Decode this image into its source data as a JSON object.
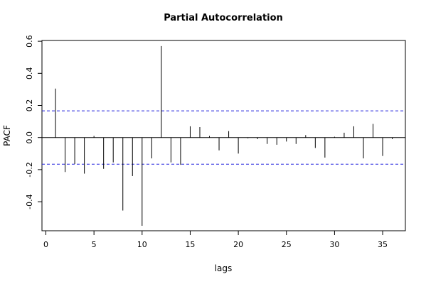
{
  "chart_data": {
    "type": "bar",
    "title": "Partial Autocorrelation",
    "xlabel": "lags",
    "ylabel": "PACF",
    "xlim": [
      0,
      37
    ],
    "ylim": [
      -0.58,
      0.6
    ],
    "x_ticks": [
      0,
      5,
      10,
      15,
      20,
      25,
      30,
      35
    ],
    "y_ticks": [
      -0.4,
      -0.2,
      0.0,
      0.2,
      0.4,
      0.6
    ],
    "y_tick_labels": [
      "-0.4",
      "-0.2",
      "0.0",
      "0.2",
      "0.4",
      "0.6"
    ],
    "confidence_bound": 0.166,
    "confidence_line_color": "#2222dd",
    "grid": false,
    "legend": "none",
    "x": [
      1,
      2,
      3,
      4,
      5,
      6,
      7,
      8,
      9,
      10,
      11,
      12,
      13,
      14,
      15,
      16,
      17,
      18,
      19,
      20,
      21,
      22,
      23,
      24,
      25,
      26,
      27,
      28,
      29,
      30,
      31,
      32,
      33,
      34,
      35,
      36
    ],
    "values": [
      0.305,
      -0.215,
      -0.165,
      -0.225,
      0.01,
      -0.195,
      -0.155,
      -0.455,
      -0.24,
      -0.55,
      -0.13,
      0.57,
      -0.155,
      -0.17,
      0.07,
      0.065,
      0.01,
      -0.08,
      0.04,
      -0.1,
      -0.005,
      -0.01,
      -0.04,
      -0.045,
      -0.025,
      -0.04,
      0.015,
      -0.065,
      -0.125,
      0.005,
      0.03,
      0.07,
      -0.13,
      0.085,
      -0.115,
      -0.01
    ]
  }
}
